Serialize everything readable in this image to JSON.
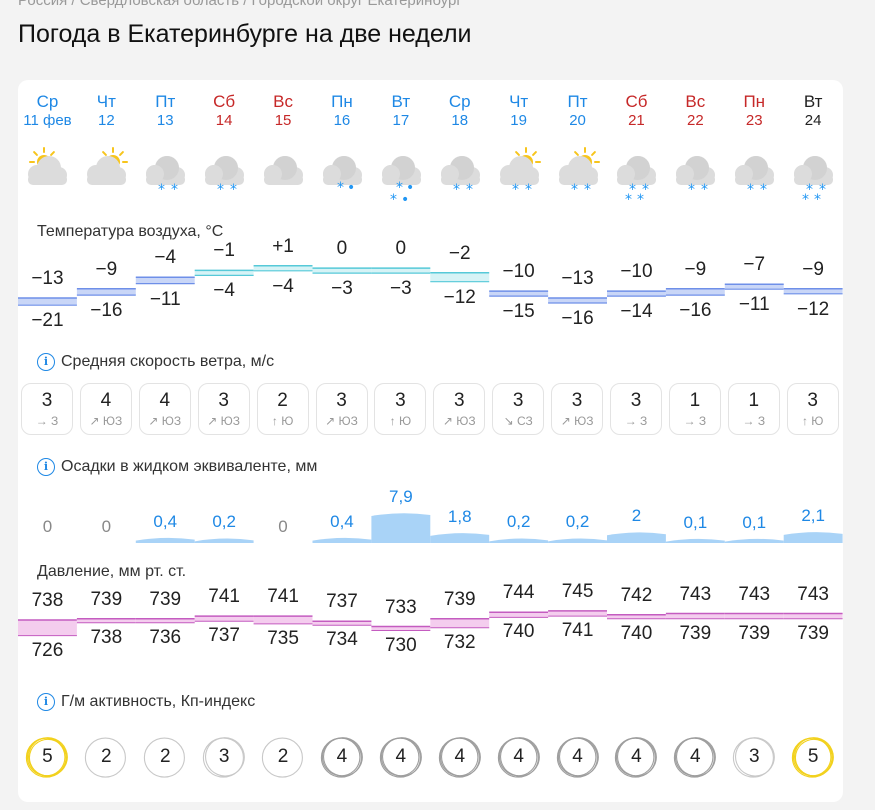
{
  "breadcrumb": "Россия / Свердловская область / Городской округ Екатеринбург",
  "page_title": "Погода в Екатеринбурге на две недели",
  "days": [
    {
      "name": "Ср",
      "date": "11 фев",
      "color": "blue",
      "icon": "sun-cloud-icon"
    },
    {
      "name": "Чт",
      "date": "12",
      "color": "blue",
      "icon": "sun-cloud-icon"
    },
    {
      "name": "Пт",
      "date": "13",
      "color": "blue",
      "icon": "cloud-snow-icon"
    },
    {
      "name": "Сб",
      "date": "14",
      "color": "red",
      "icon": "cloud-snow-icon"
    },
    {
      "name": "Вс",
      "date": "15",
      "color": "red",
      "icon": "cloud-icon"
    },
    {
      "name": "Пн",
      "date": "16",
      "color": "blue",
      "icon": "cloud-sleet-icon"
    },
    {
      "name": "Вт",
      "date": "17",
      "color": "blue",
      "icon": "cloud-sleet-icon"
    },
    {
      "name": "Ср",
      "date": "18",
      "color": "blue",
      "icon": "cloud-snow-icon"
    },
    {
      "name": "Чт",
      "date": "19",
      "color": "blue",
      "icon": "sun-cloud-snow-icon"
    },
    {
      "name": "Пт",
      "date": "20",
      "color": "blue",
      "icon": "sun-cloud-snow-icon"
    },
    {
      "name": "Сб",
      "date": "21",
      "color": "red",
      "icon": "cloud-snow-icon"
    },
    {
      "name": "Вс",
      "date": "22",
      "color": "red",
      "icon": "cloud-snow-icon"
    },
    {
      "name": "Пн",
      "date": "23",
      "color": "red",
      "icon": "cloud-snow-icon"
    },
    {
      "name": "Вт",
      "date": "24",
      "color": "black",
      "icon": "cloud-snow-icon"
    }
  ],
  "temperature": {
    "title": "Температура воздуха, °С",
    "max": [
      "−13",
      "−9",
      "−4",
      "−1",
      "+1",
      "0",
      "0",
      "−2",
      "−10",
      "−13",
      "−10",
      "−9",
      "−7",
      "−9"
    ],
    "min": [
      "−21",
      "−16",
      "−11",
      "−4",
      "−4",
      "−3",
      "−3",
      "−12",
      "−15",
      "−16",
      "−14",
      "−16",
      "−11",
      "−12"
    ]
  },
  "wind": {
    "title": "Средняя скорость ветра, м/с",
    "info_icon": "info-icon",
    "speed": [
      "3",
      "4",
      "4",
      "3",
      "2",
      "3",
      "3",
      "3",
      "3",
      "3",
      "3",
      "1",
      "1",
      "3"
    ],
    "dir": [
      "→ З",
      "↗ ЮЗ",
      "↗ ЮЗ",
      "↗ ЮЗ",
      "↑ Ю",
      "↗ ЮЗ",
      "↑ Ю",
      "↗ ЮЗ",
      "↘ СЗ",
      "↗ ЮЗ",
      "→ З",
      "→ З",
      "→ З",
      "↑ Ю"
    ]
  },
  "precip": {
    "title": "Осадки в жидком эквиваленте, мм",
    "info_icon": "info-icon",
    "values": [
      "0",
      "0",
      "0,4",
      "0,2",
      "0",
      "0,4",
      "7,9",
      "1,8",
      "0,2",
      "0,2",
      "2",
      "0,1",
      "0,1",
      "2,1"
    ],
    "amounts": [
      0,
      0,
      0.4,
      0.2,
      0,
      0.4,
      7.9,
      1.8,
      0.2,
      0.2,
      2,
      0.1,
      0.1,
      2.1
    ]
  },
  "pressure": {
    "title": "Давление, мм рт. ст.",
    "max": [
      "738",
      "739",
      "739",
      "741",
      "741",
      "737",
      "733",
      "739",
      "744",
      "745",
      "742",
      "743",
      "743",
      "743"
    ],
    "min": [
      "726",
      "738",
      "736",
      "737",
      "735",
      "734",
      "730",
      "732",
      "740",
      "741",
      "740",
      "739",
      "739",
      "739"
    ]
  },
  "kp": {
    "title": "Г/м активность, Кп-индекс",
    "info_icon": "info-icon",
    "values": [
      "5",
      "2",
      "2",
      "3",
      "2",
      "4",
      "4",
      "4",
      "4",
      "4",
      "4",
      "4",
      "3",
      "5"
    ]
  },
  "colors": {
    "blue_text": "#1e88e5",
    "red_text": "#c62828",
    "temp_fill": "#c9d6f7",
    "temp_line": "#6e8fe8",
    "temp_warm_fill": "#d6f3f6",
    "temp_warm_line": "#56c9d8",
    "precip_fill": "#a9d3f7",
    "pressure_fill": "#f4cdee",
    "pressure_line": "#c45cc0",
    "kp_yellow": "#f2d11c",
    "kp_gray": "#bdbdbd"
  }
}
